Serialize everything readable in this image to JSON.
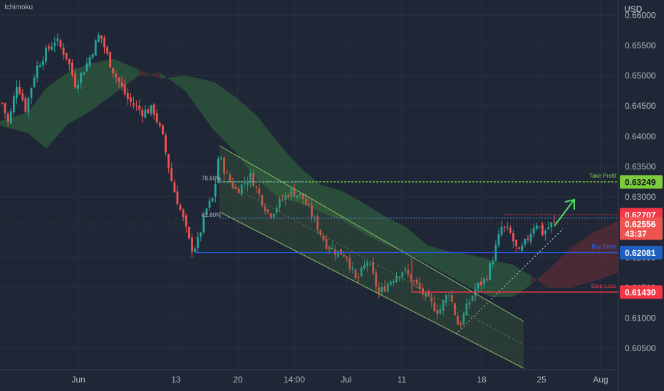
{
  "header": {
    "indicator": "Ichimoku",
    "currency": "USD"
  },
  "colors": {
    "background": "#1f2736",
    "bull": "#26a69a",
    "bear": "#ef5350",
    "cloud_bull": "#2e5a3e",
    "cloud_bear": "#5a2e36",
    "take_profit": "#7bcc3a",
    "buy_entry": "#2962ff",
    "stop_loss": "#f23645",
    "channel": "#8fbf6a",
    "fib": "#5b8ae8",
    "resistance": "#f23645"
  },
  "chart_data": {
    "type": "candlestick",
    "ylim": [
      0.6015,
      0.6625
    ],
    "y_ticks": [
      "0.66000",
      "0.65500",
      "0.65000",
      "0.64500",
      "0.64000",
      "0.63500",
      "0.63000",
      "0.62500",
      "0.62000",
      "0.61500",
      "0.61000",
      "0.60500"
    ],
    "x_ticks": [
      "Jun",
      "13",
      "20",
      "14:00",
      "Jul",
      "11",
      "18",
      "25",
      "Aug"
    ],
    "price_levels": [
      {
        "name": "Take Profit",
        "label": "Take Profit",
        "value": "0.63249"
      },
      {
        "name": "resistance",
        "label": "",
        "value": "0.62707"
      },
      {
        "name": "last price",
        "label": "",
        "value": "0.62556",
        "countdown": "43:37"
      },
      {
        "name": "Buy Entry",
        "label": "Buy Entry",
        "value": "0.62081"
      },
      {
        "name": "Stop Loss",
        "label": "Stop Loss",
        "value": "0.61430"
      }
    ],
    "fib_levels": [
      {
        "label": "78.60%",
        "value": 0.6325
      },
      {
        "label": "61.80%",
        "value": 0.6265
      }
    ],
    "hidden_tick_labels": [
      "0.62500",
      "0.62000",
      "0.61500"
    ]
  }
}
